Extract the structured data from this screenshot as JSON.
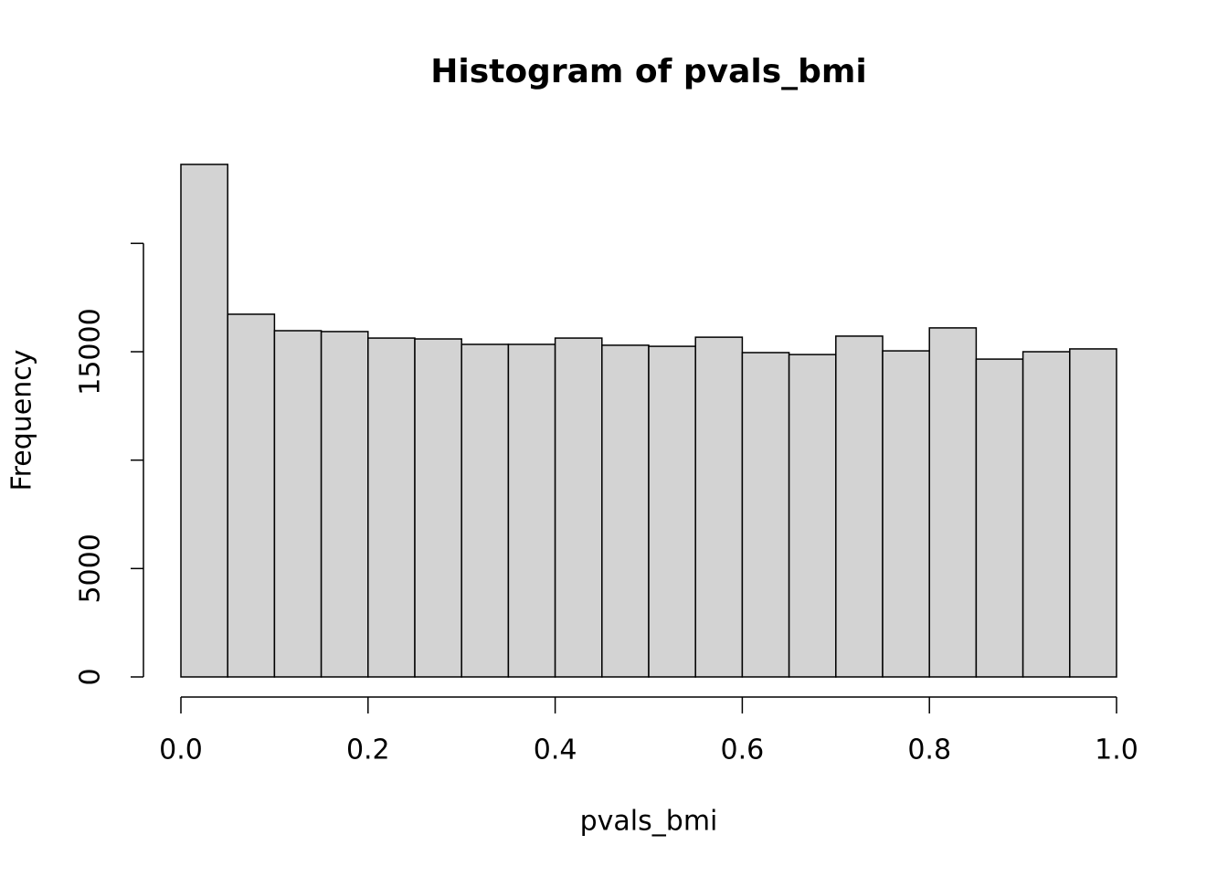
{
  "chart_data": {
    "type": "histogram",
    "title": "Histogram of pvals_bmi",
    "x_label": "pvals_bmi",
    "y_label": "Frequency",
    "bins": [
      0,
      0.05,
      0.1,
      0.15,
      0.2,
      0.25,
      0.3,
      0.35,
      0.4,
      0.45,
      0.5,
      0.55,
      0.6,
      0.65,
      0.7,
      0.75,
      0.8,
      0.85,
      0.9,
      0.95,
      1
    ],
    "values": [
      23640,
      16730,
      15970,
      15930,
      15630,
      15590,
      15340,
      15340,
      15630,
      15300,
      15250,
      15670,
      14960,
      14870,
      15720,
      15040,
      16100,
      14660,
      15000,
      15130
    ],
    "color": "#d3d3d3",
    "xlim": [
      0,
      1
    ],
    "xticks": [
      {
        "value": 0,
        "label": "0.0"
      },
      0.2,
      0.4,
      0.6,
      0.8,
      {
        "value": 1,
        "label": "1.0"
      }
    ],
    "ylim": [
      0,
      25000
    ],
    "yticks": [
      0,
      5000,
      {
        "value": 10000,
        "label": null
      },
      15000,
      {
        "value": 20000,
        "label": null
      }
    ]
  }
}
